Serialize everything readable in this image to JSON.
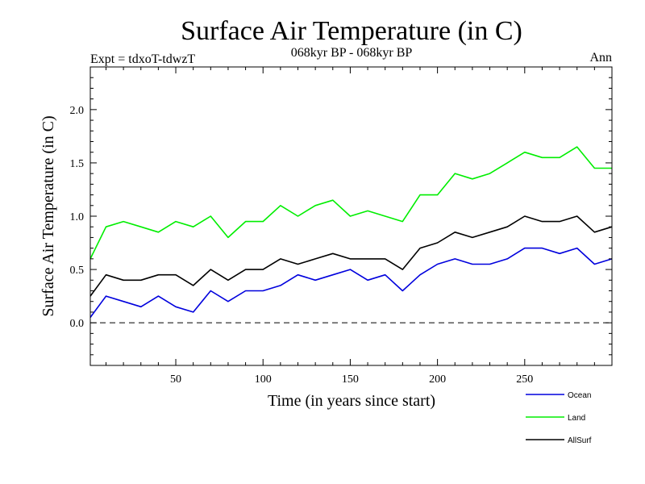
{
  "header": {
    "title": "Surface Air Temperature (in C)",
    "left": "Expt = tdxoT-tdwzT",
    "center": "068kyr BP - 068kyr BP",
    "right": "Ann"
  },
  "chart_data": {
    "type": "line",
    "title": "Surface Air Temperature (in C)",
    "xlabel": "Time (in years since start)",
    "ylabel": "Surface Air Temperature (in C)",
    "xlim": [
      1,
      300
    ],
    "ylim": [
      -0.4,
      2.4
    ],
    "xticks": [
      50,
      100,
      150,
      200,
      250
    ],
    "yticks": [
      0.0,
      0.5,
      1.0,
      1.5,
      2.0
    ],
    "xtick_labels": [
      "50",
      "100",
      "150",
      "200",
      "250"
    ],
    "ytick_labels": [
      "0.0",
      "0.5",
      "1.0",
      "1.5",
      "2.0"
    ],
    "zero_line": true,
    "grid": false,
    "legend_position": "bottom-right, below plot",
    "x": [
      1,
      10,
      20,
      30,
      40,
      50,
      60,
      70,
      80,
      90,
      100,
      110,
      120,
      130,
      140,
      150,
      160,
      170,
      180,
      190,
      200,
      210,
      220,
      230,
      240,
      250,
      260,
      270,
      280,
      290,
      300
    ],
    "series": [
      {
        "name": "Ocean",
        "color": "#0000dd",
        "values": [
          0.05,
          0.25,
          0.2,
          0.15,
          0.25,
          0.15,
          0.1,
          0.3,
          0.2,
          0.3,
          0.3,
          0.35,
          0.45,
          0.4,
          0.45,
          0.5,
          0.4,
          0.45,
          0.3,
          0.45,
          0.55,
          0.6,
          0.55,
          0.55,
          0.6,
          0.7,
          0.7,
          0.65,
          0.7,
          0.55,
          0.6
        ]
      },
      {
        "name": "Land",
        "color": "#00ee00",
        "values": [
          0.6,
          0.9,
          0.95,
          0.9,
          0.85,
          0.95,
          0.9,
          1.0,
          0.8,
          0.95,
          0.95,
          1.1,
          1.0,
          1.1,
          1.15,
          1.0,
          1.05,
          1.0,
          0.95,
          1.2,
          1.2,
          1.4,
          1.35,
          1.4,
          1.5,
          1.6,
          1.55,
          1.55,
          1.65,
          1.45,
          1.45
        ]
      },
      {
        "name": "AllSurf",
        "color": "#000000",
        "values": [
          0.25,
          0.45,
          0.4,
          0.4,
          0.45,
          0.45,
          0.35,
          0.5,
          0.4,
          0.5,
          0.5,
          0.6,
          0.55,
          0.6,
          0.65,
          0.6,
          0.6,
          0.6,
          0.5,
          0.7,
          0.75,
          0.85,
          0.8,
          0.85,
          0.9,
          1.0,
          0.95,
          0.95,
          1.0,
          0.85,
          0.9
        ]
      }
    ]
  }
}
